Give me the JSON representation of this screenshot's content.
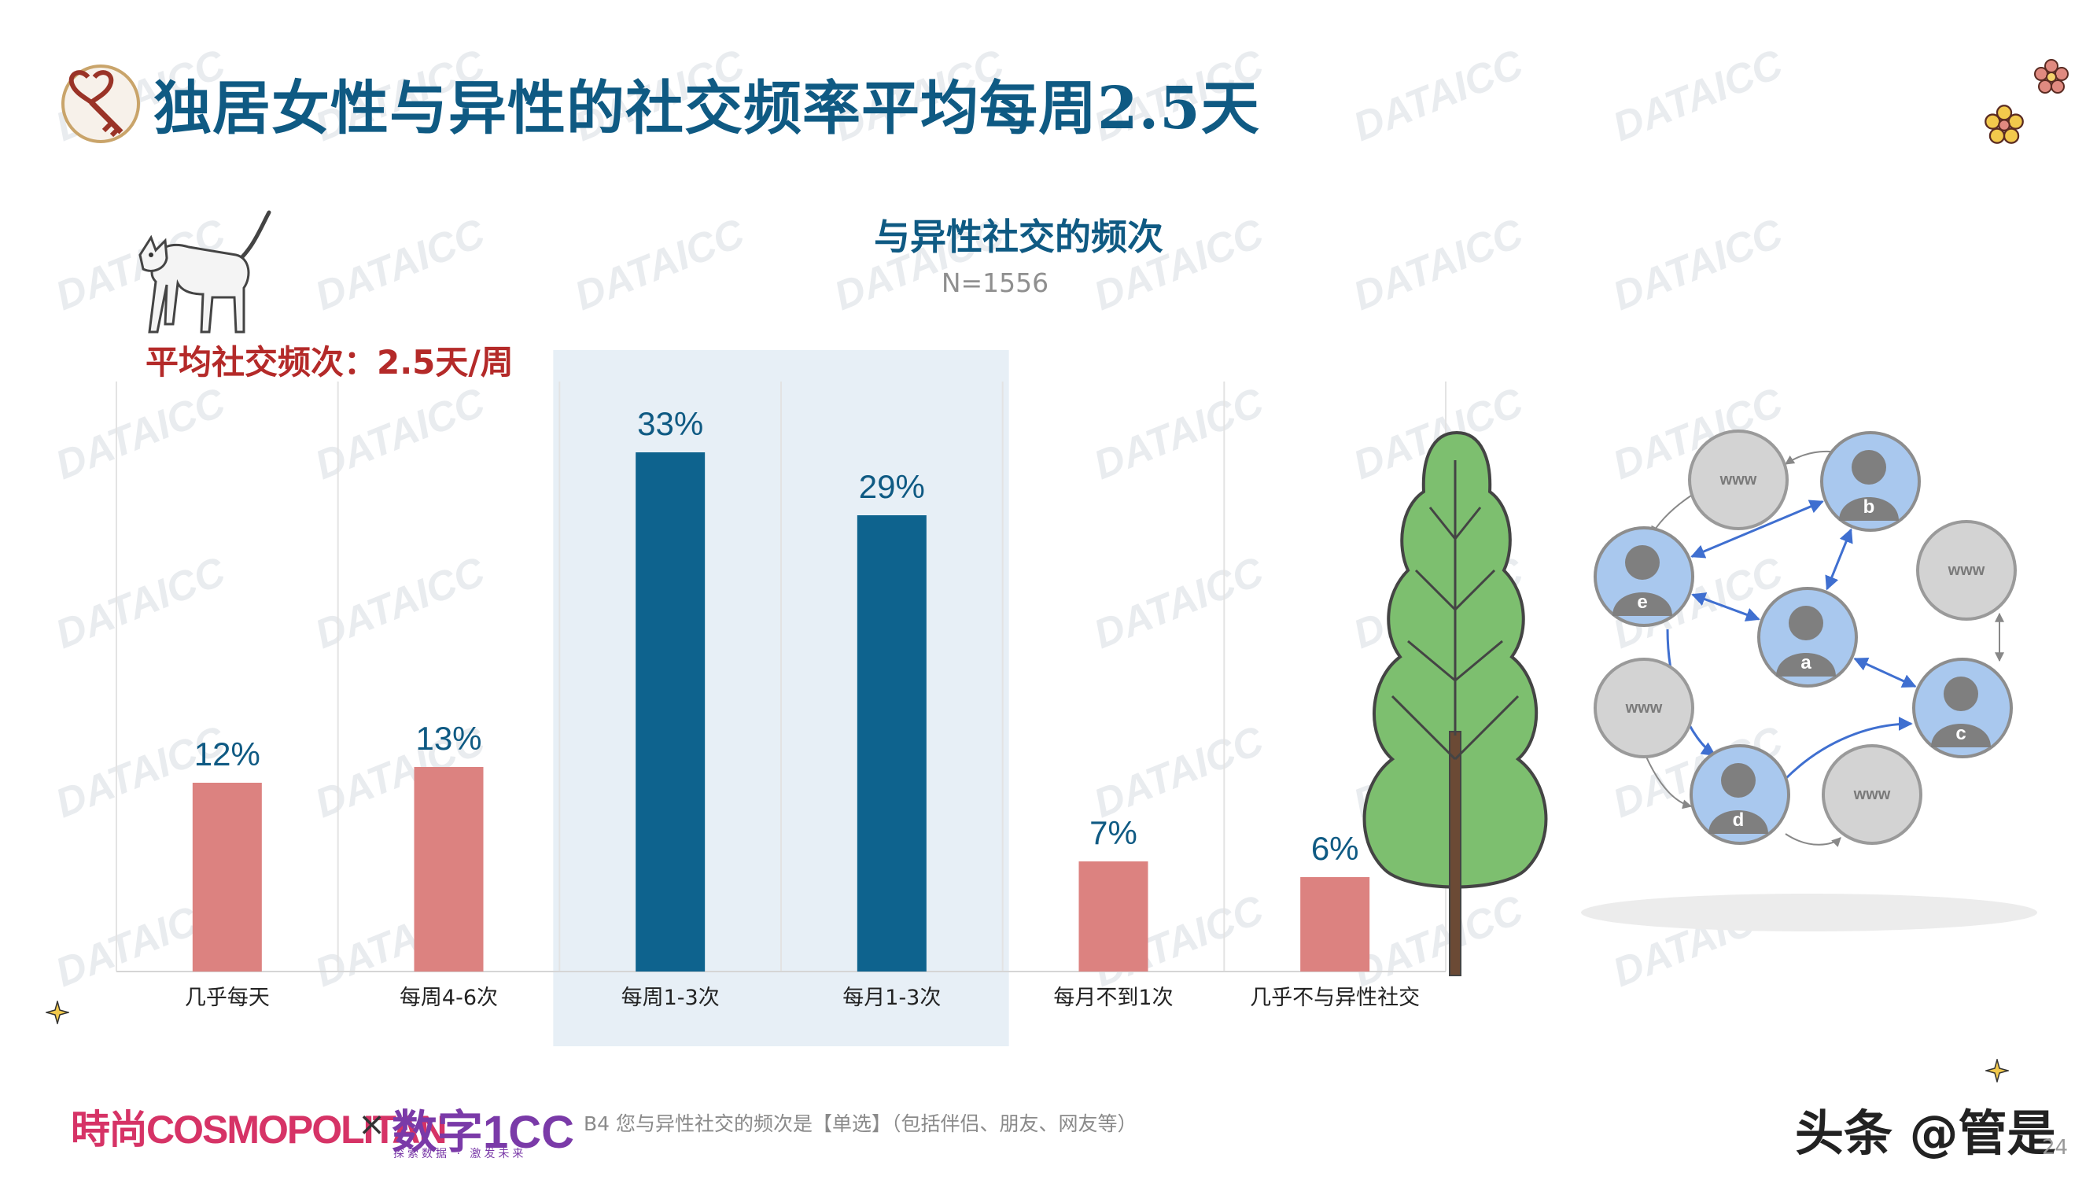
{
  "header": {
    "title": "独居女性与异性的社交频率平均每周2.5天"
  },
  "chart_data": {
    "type": "bar",
    "title": "与异性社交的频次",
    "subtitle": "N=1556",
    "categories": [
      "几乎每天",
      "每周4-6次",
      "每周1-3次",
      "每月1-3次",
      "每月不到1次",
      "几乎不与异性社交"
    ],
    "values": [
      12,
      13,
      33,
      29,
      7,
      6
    ],
    "value_labels": [
      "12%",
      "13%",
      "33%",
      "29%",
      "7%",
      "6%"
    ],
    "highlighted_categories": [
      "每周1-3次",
      "每月1-3次"
    ],
    "ylim": [
      0,
      37
    ],
    "grid": false,
    "colors": {
      "normal": "#dc8280",
      "highlight": "#0e638e",
      "highlight_band": "#e7eff6"
    }
  },
  "callout": {
    "average": "平均社交频次：2.5天/周"
  },
  "network_diagram": {
    "www_label": "www",
    "node_labels": [
      "a",
      "b",
      "c",
      "d",
      "e"
    ]
  },
  "footer": {
    "brand_cosmopolitan": "時尚COSMOPOLITAN",
    "brand_separator": "×",
    "brand_dataicc": "数字1CC",
    "brand_dataicc_sub": "探索数据 · 激发未来",
    "footnote": "B4 您与异性社交的频次是【单选】（包括伴侣、朋友、网友等）",
    "page_number": "24",
    "source_watermark": "头条 @管是"
  },
  "watermark_text": "DATAICC",
  "theme": {
    "title_color": "#0f5a83",
    "accent_red": "#b42a29"
  }
}
